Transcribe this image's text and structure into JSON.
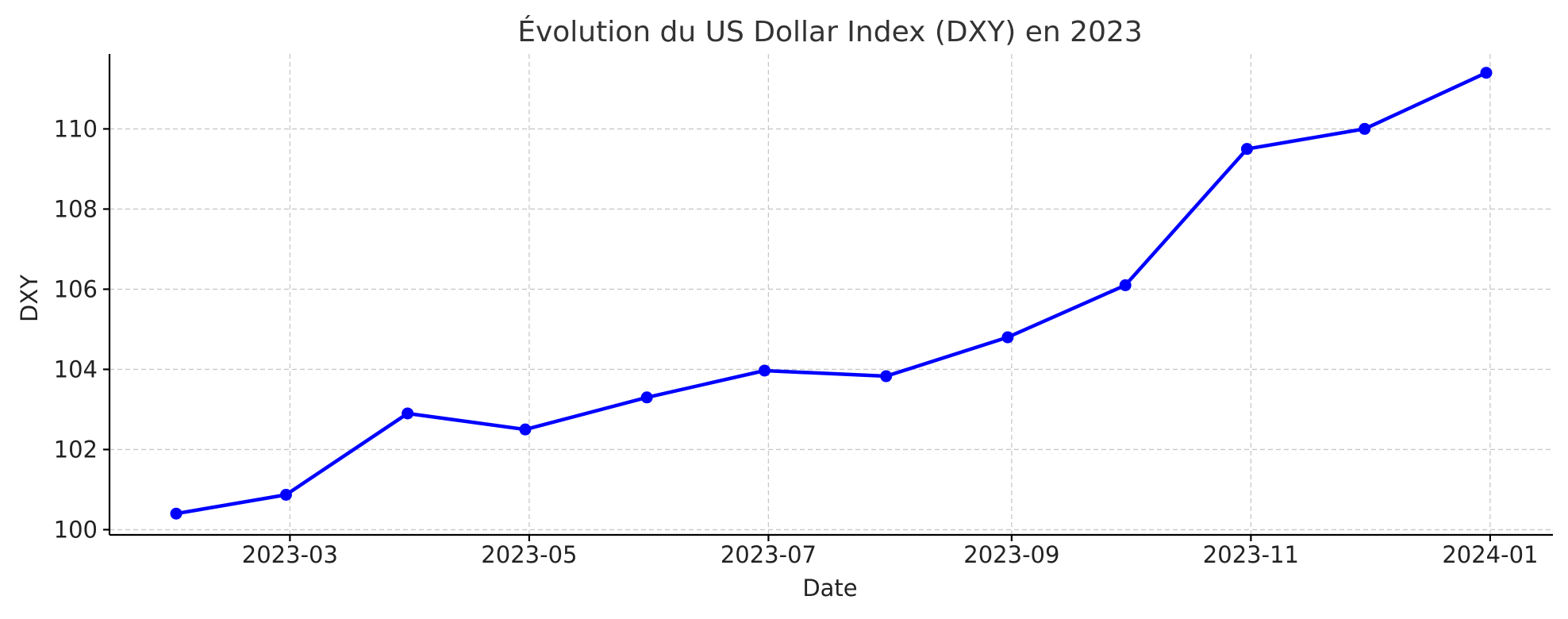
{
  "chart_data": {
    "type": "line",
    "title": "Évolution du US Dollar Index (DXY) en 2023",
    "xlabel": "Date",
    "ylabel": "DXY",
    "x_ticks": [
      "2023-03",
      "2023-05",
      "2023-07",
      "2023-09",
      "2023-11",
      "2024-01"
    ],
    "y_ticks": [
      100,
      102,
      104,
      106,
      108,
      110
    ],
    "xlim": [
      "2023-01-14",
      "2024-01-17"
    ],
    "ylim": [
      99.87,
      111.87
    ],
    "grid": true,
    "line_color": "#0000ff",
    "series": [
      {
        "x": [
          "2023-01-31",
          "2023-02-28",
          "2023-03-31",
          "2023-04-30",
          "2023-05-31",
          "2023-06-30",
          "2023-07-31",
          "2023-08-31",
          "2023-09-30",
          "2023-10-31",
          "2023-11-30",
          "2023-12-31"
        ],
        "values": [
          100.4,
          100.87,
          102.9,
          102.5,
          103.3,
          103.97,
          103.83,
          104.8,
          106.1,
          109.5,
          110.0,
          111.4
        ]
      }
    ]
  }
}
